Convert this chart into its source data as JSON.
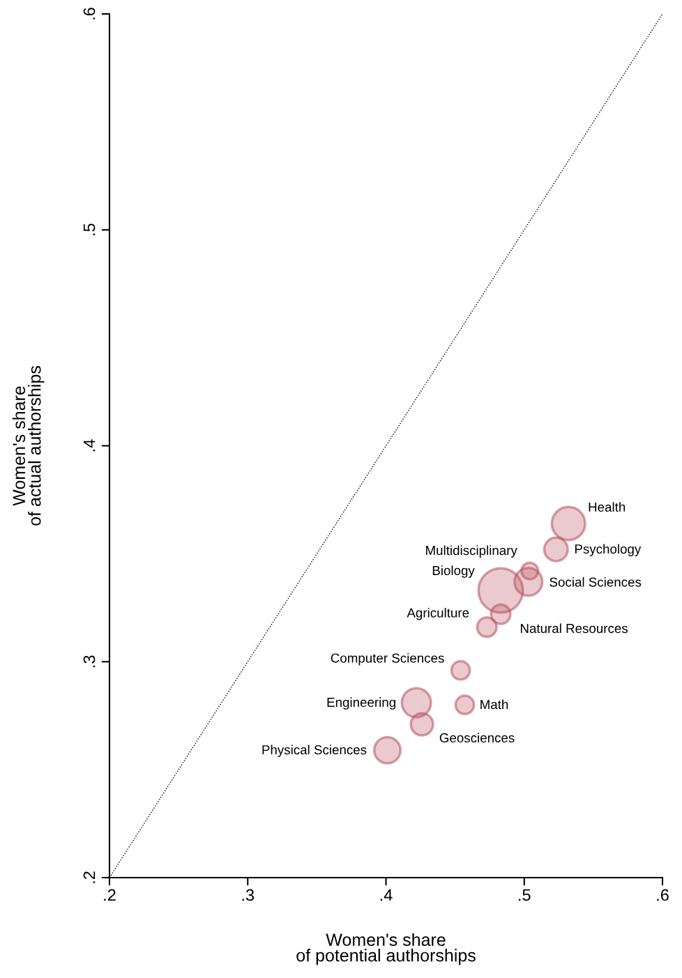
{
  "chart_data": {
    "type": "bubble",
    "xlabel": "Women's share\nof potential authorships",
    "ylabel": "Women's share\nof actual authorships",
    "xlim": [
      0.2,
      0.6
    ],
    "ylim": [
      0.2,
      0.6
    ],
    "xticks": [
      {
        "value": 0.2,
        "label": ".2"
      },
      {
        "value": 0.3,
        "label": ".3"
      },
      {
        "value": 0.4,
        "label": ".4"
      },
      {
        "value": 0.5,
        "label": ".5"
      },
      {
        "value": 0.6,
        "label": ".6"
      }
    ],
    "yticks": [
      {
        "value": 0.2,
        "label": ".2"
      },
      {
        "value": 0.3,
        "label": ".3"
      },
      {
        "value": 0.4,
        "label": ".4"
      },
      {
        "value": 0.5,
        "label": ".5"
      },
      {
        "value": 0.6,
        "label": ".6"
      }
    ],
    "grid": false,
    "series": [
      {
        "type": "bubble",
        "name": "Health",
        "color": "#b8505c",
        "x": [
          0.532
        ],
        "values": [
          0.364
        ],
        "sizes": [
          0.56
        ]
      },
      {
        "type": "bubble",
        "name": "Psychology",
        "color": "#b8505c",
        "x": [
          0.523
        ],
        "values": [
          0.352
        ],
        "sizes": [
          0.28
        ]
      },
      {
        "type": "bubble",
        "name": "Multidisciplinary",
        "color": "#b8505c",
        "x": [
          0.504
        ],
        "values": [
          0.342
        ],
        "sizes": [
          0.14
        ]
      },
      {
        "type": "bubble",
        "name": "Social Sciences",
        "color": "#b8505c",
        "x": [
          0.503
        ],
        "values": [
          0.337
        ],
        "sizes": [
          0.39
        ]
      },
      {
        "type": "bubble",
        "name": "Biology",
        "color": "#b8505c",
        "x": [
          0.483
        ],
        "values": [
          0.333
        ],
        "sizes": [
          1
        ]
      },
      {
        "type": "bubble",
        "name": "Natural Resources",
        "color": "#b8505c",
        "x": [
          0.483
        ],
        "values": [
          0.322
        ],
        "sizes": [
          0.19
        ]
      },
      {
        "type": "bubble",
        "name": "Agriculture",
        "color": "#b8505c",
        "x": [
          0.473
        ],
        "values": [
          0.316
        ],
        "sizes": [
          0.19
        ]
      },
      {
        "type": "bubble",
        "name": "Computer Sciences",
        "color": "#b8505c",
        "x": [
          0.454
        ],
        "values": [
          0.296
        ],
        "sizes": [
          0.17
        ]
      },
      {
        "type": "bubble",
        "name": "Math",
        "color": "#b8505c",
        "x": [
          0.457
        ],
        "values": [
          0.28
        ],
        "sizes": [
          0.17
        ]
      },
      {
        "type": "bubble",
        "name": "Engineering",
        "color": "#b8505c",
        "x": [
          0.422
        ],
        "values": [
          0.281
        ],
        "sizes": [
          0.43
        ]
      },
      {
        "type": "bubble",
        "name": "Geosciences",
        "color": "#b8505c",
        "x": [
          0.426
        ],
        "values": [
          0.271
        ],
        "sizes": [
          0.25
        ]
      },
      {
        "type": "bubble",
        "name": "Physical Sciences",
        "color": "#b8505c",
        "x": [
          0.401
        ],
        "values": [
          0.259
        ],
        "sizes": [
          0.35
        ]
      },
      {
        "type": "line",
        "color": "#000000",
        "line_style": "dotted",
        "x": [
          0.2,
          0.6
        ],
        "values": [
          0.2,
          0.6
        ]
      }
    ]
  }
}
